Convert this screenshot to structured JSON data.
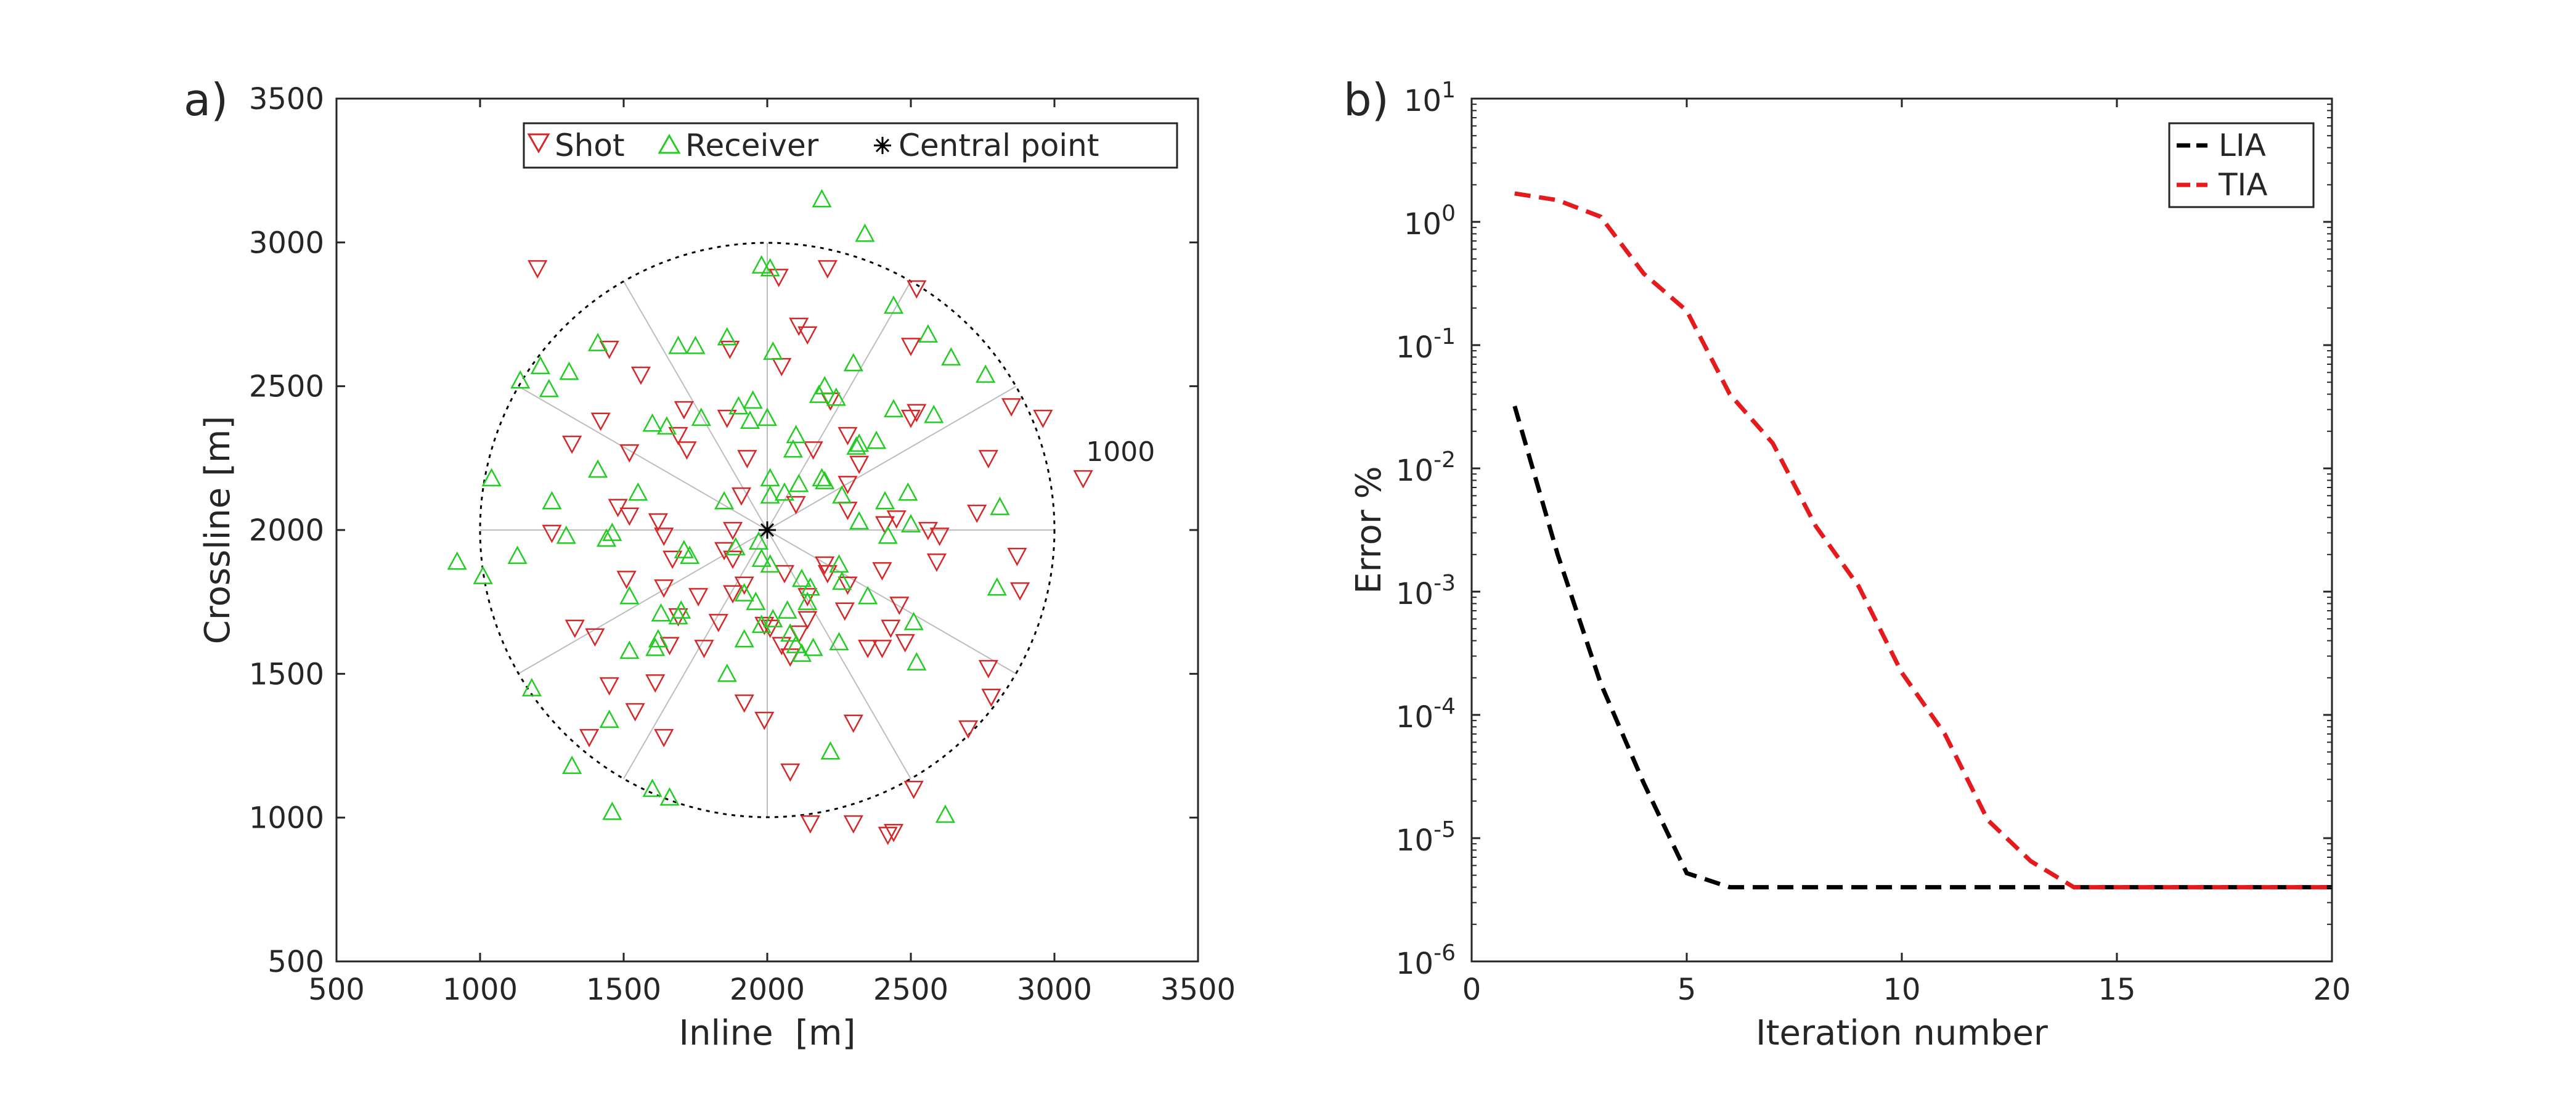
{
  "chart_data": [
    {
      "panel_label": "a)",
      "type": "scatter",
      "xlabel": "Inline  [m]",
      "ylabel": "Crossline [m]",
      "xlim": [
        500,
        3500
      ],
      "ylim": [
        500,
        3500
      ],
      "xticks": [
        "500",
        "1000",
        "1500",
        "2000",
        "2500",
        "3000",
        "3500"
      ],
      "yticks": [
        "500",
        "1000",
        "1500",
        "2000",
        "2500",
        "3000",
        "3500"
      ],
      "legend": {
        "position": "top",
        "entries": [
          "Shot",
          "Receiver",
          "Central point"
        ]
      },
      "colors": {
        "shot": "#d62728",
        "receiver": "#22cc22",
        "central": "#000000",
        "circle": "#000000",
        "spokes": "#bdbdbd"
      },
      "circle": {
        "center": [
          2000,
          2000
        ],
        "radius": 1000,
        "label": "1000"
      },
      "spokes_deg": [
        0,
        30,
        60,
        90,
        120,
        150,
        180,
        210,
        240,
        270,
        300,
        330
      ],
      "central_point": [
        2000,
        2000
      ],
      "series": [
        {
          "name": "Shot",
          "marker": "triangle-down",
          "points": [
            [
              1200,
              2910
            ],
            [
              2040,
              2880
            ],
            [
              2210,
              2910
            ],
            [
              1450,
              2630
            ],
            [
              2520,
              2840
            ],
            [
              2110,
              2710
            ],
            [
              1870,
              2630
            ],
            [
              2050,
              2570
            ],
            [
              2140,
              2680
            ],
            [
              2500,
              2640
            ],
            [
              1560,
              2540
            ],
            [
              1710,
              2420
            ],
            [
              1860,
              2390
            ],
            [
              2220,
              2450
            ],
            [
              2520,
              2410
            ],
            [
              2500,
              2390
            ],
            [
              2850,
              2430
            ],
            [
              2960,
              2390
            ],
            [
              3100,
              2180
            ],
            [
              1420,
              2380
            ],
            [
              1690,
              2330
            ],
            [
              2280,
              2330
            ],
            [
              1320,
              2300
            ],
            [
              2160,
              2280
            ],
            [
              1720,
              2280
            ],
            [
              1520,
              2270
            ],
            [
              2770,
              2250
            ],
            [
              1930,
              2250
            ],
            [
              2320,
              2230
            ],
            [
              2280,
              2160
            ],
            [
              1910,
              2120
            ],
            [
              1480,
              2080
            ],
            [
              1520,
              2050
            ],
            [
              1620,
              2030
            ],
            [
              1880,
              2000
            ],
            [
              1250,
              1990
            ],
            [
              1640,
              1980
            ],
            [
              2100,
              2090
            ],
            [
              2280,
              2070
            ],
            [
              2600,
              1980
            ],
            [
              2590,
              1890
            ],
            [
              2730,
              2060
            ],
            [
              2450,
              2040
            ],
            [
              2560,
              2000
            ],
            [
              2410,
              2020
            ],
            [
              1850,
              1930
            ],
            [
              1880,
              1900
            ],
            [
              1670,
              1900
            ],
            [
              2200,
              1880
            ],
            [
              2400,
              1860
            ],
            [
              2880,
              1790
            ],
            [
              2870,
              1910
            ],
            [
              1920,
              1810
            ],
            [
              2060,
              1850
            ],
            [
              2210,
              1850
            ],
            [
              1640,
              1800
            ],
            [
              1510,
              1830
            ],
            [
              2280,
              1810
            ],
            [
              1760,
              1770
            ],
            [
              1880,
              1780
            ],
            [
              2140,
              1770
            ],
            [
              2270,
              1720
            ],
            [
              2460,
              1740
            ],
            [
              2140,
              1690
            ],
            [
              1690,
              1700
            ],
            [
              1330,
              1660
            ],
            [
              1830,
              1680
            ],
            [
              2430,
              1660
            ],
            [
              1400,
              1630
            ],
            [
              1660,
              1600
            ],
            [
              1990,
              1670
            ],
            [
              2010,
              1660
            ],
            [
              2110,
              1640
            ],
            [
              2050,
              1600
            ],
            [
              2080,
              1560
            ],
            [
              2350,
              1590
            ],
            [
              2400,
              1590
            ],
            [
              2480,
              1610
            ],
            [
              1780,
              1590
            ],
            [
              2770,
              1520
            ],
            [
              2780,
              1420
            ],
            [
              1450,
              1460
            ],
            [
              1610,
              1470
            ],
            [
              1920,
              1400
            ],
            [
              1540,
              1370
            ],
            [
              1990,
              1340
            ],
            [
              2300,
              1330
            ],
            [
              2700,
              1310
            ],
            [
              1380,
              1280
            ],
            [
              1640,
              1280
            ],
            [
              2080,
              1160
            ],
            [
              2510,
              1100
            ],
            [
              2150,
              980
            ],
            [
              2300,
              980
            ],
            [
              2420,
              940
            ],
            [
              2440,
              950
            ]
          ]
        },
        {
          "name": "Receiver",
          "marker": "triangle-up",
          "points": [
            [
              2190,
              3150
            ],
            [
              2340,
              3030
            ],
            [
              1980,
              2920
            ],
            [
              2010,
              2910
            ],
            [
              1140,
              2520
            ],
            [
              1210,
              2570
            ],
            [
              1310,
              2550
            ],
            [
              1410,
              2650
            ],
            [
              1690,
              2640
            ],
            [
              1750,
              2640
            ],
            [
              1860,
              2670
            ],
            [
              2020,
              2620
            ],
            [
              2440,
              2780
            ],
            [
              2560,
              2680
            ],
            [
              2640,
              2600
            ],
            [
              2760,
              2540
            ],
            [
              2300,
              2580
            ],
            [
              2200,
              2500
            ],
            [
              2240,
              2460
            ],
            [
              1240,
              2490
            ],
            [
              1950,
              2450
            ],
            [
              2180,
              2470
            ],
            [
              2440,
              2420
            ],
            [
              1900,
              2430
            ],
            [
              1940,
              2380
            ],
            [
              1600,
              2370
            ],
            [
              2580,
              2400
            ],
            [
              2000,
              2390
            ],
            [
              2380,
              2310
            ],
            [
              1650,
              2360
            ],
            [
              1770,
              2390
            ],
            [
              2100,
              2330
            ],
            [
              2090,
              2280
            ],
            [
              2310,
              2290
            ],
            [
              2320,
              2300
            ],
            [
              1410,
              2210
            ],
            [
              1040,
              2180
            ],
            [
              1550,
              2130
            ],
            [
              2010,
              2180
            ],
            [
              2190,
              2180
            ],
            [
              2110,
              2160
            ],
            [
              2200,
              2170
            ],
            [
              2260,
              2120
            ],
            [
              2010,
              2120
            ],
            [
              2060,
              2130
            ],
            [
              2410,
              2100
            ],
            [
              2490,
              2130
            ],
            [
              2810,
              2080
            ],
            [
              2500,
              2020
            ],
            [
              1250,
              2100
            ],
            [
              1300,
              1980
            ],
            [
              1440,
              1970
            ],
            [
              1460,
              1990
            ],
            [
              1710,
              1930
            ],
            [
              2420,
              1980
            ],
            [
              2320,
              2030
            ],
            [
              1850,
              2100
            ],
            [
              1730,
              1910
            ],
            [
              1890,
              1940
            ],
            [
              1970,
              1960
            ],
            [
              1980,
              1900
            ],
            [
              2010,
              1880
            ],
            [
              2250,
              1880
            ],
            [
              2260,
              1820
            ],
            [
              2150,
              1800
            ],
            [
              2350,
              1770
            ],
            [
              2140,
              1750
            ],
            [
              2070,
              1720
            ],
            [
              2020,
              1690
            ],
            [
              2080,
              1640
            ],
            [
              2100,
              1600
            ],
            [
              2160,
              1590
            ],
            [
              1520,
              1770
            ],
            [
              1630,
              1710
            ],
            [
              1960,
              1750
            ],
            [
              1690,
              1700
            ],
            [
              1920,
              1780
            ],
            [
              2120,
              1830
            ],
            [
              2510,
              1680
            ],
            [
              2800,
              1800
            ],
            [
              1610,
              1590
            ],
            [
              1620,
              1620
            ],
            [
              1920,
              1620
            ],
            [
              1980,
              1670
            ],
            [
              2120,
              1570
            ],
            [
              2250,
              1610
            ],
            [
              1860,
              1500
            ],
            [
              2520,
              1540
            ],
            [
              1520,
              1580
            ],
            [
              1450,
              1340
            ],
            [
              1130,
              1910
            ],
            [
              1010,
              1840
            ],
            [
              920,
              1890
            ],
            [
              1320,
              1180
            ],
            [
              1460,
              1020
            ],
            [
              1600,
              1100
            ],
            [
              1660,
              1070
            ],
            [
              2220,
              1230
            ],
            [
              2620,
              1010
            ],
            [
              1180,
              1450
            ],
            [
              1700,
              1720
            ]
          ]
        }
      ]
    },
    {
      "panel_label": "b)",
      "type": "line",
      "xlabel": "Iteration number",
      "ylabel": "Error %",
      "xlim": [
        0,
        20
      ],
      "ylim": [
        1e-06,
        10
      ],
      "yscale": "log",
      "xticks": [
        "0",
        "5",
        "10",
        "15",
        "20"
      ],
      "yticks": [
        {
          "base": "10",
          "exp": "1"
        },
        {
          "base": "10",
          "exp": "0"
        },
        {
          "base": "10",
          "exp": "-1"
        },
        {
          "base": "10",
          "exp": "-2"
        },
        {
          "base": "10",
          "exp": "-3"
        },
        {
          "base": "10",
          "exp": "-4"
        },
        {
          "base": "10",
          "exp": "-5"
        },
        {
          "base": "10",
          "exp": "-6"
        }
      ],
      "legend": {
        "position": "top-right",
        "entries": [
          "LIA",
          "TIA"
        ]
      },
      "series": [
        {
          "name": "LIA",
          "color": "#000000",
          "x": [
            1,
            2,
            3,
            4,
            5,
            6,
            7,
            8,
            9,
            10,
            11,
            12,
            13,
            14,
            15,
            16,
            17,
            18,
            19,
            20
          ],
          "y": [
            0.032,
            0.002,
            0.00018,
            2.8e-05,
            5.2e-06,
            4e-06,
            4e-06,
            4e-06,
            4e-06,
            4e-06,
            4e-06,
            4e-06,
            4e-06,
            4e-06,
            4e-06,
            4e-06,
            4e-06,
            4e-06,
            4e-06,
            4e-06
          ]
        },
        {
          "name": "TIA",
          "color": "#e41a1c",
          "x": [
            1,
            2,
            3,
            4,
            5,
            6,
            7,
            8,
            9,
            10,
            11,
            12,
            13,
            14,
            15,
            16,
            17,
            18,
            19,
            20
          ],
          "y": [
            1.7,
            1.5,
            1.1,
            0.38,
            0.19,
            0.04,
            0.016,
            0.0034,
            0.0011,
            0.00022,
            7e-05,
            1.4e-05,
            6.5e-06,
            4e-06,
            4e-06,
            4e-06,
            4e-06,
            4e-06,
            4e-06,
            4e-06
          ]
        }
      ]
    }
  ]
}
